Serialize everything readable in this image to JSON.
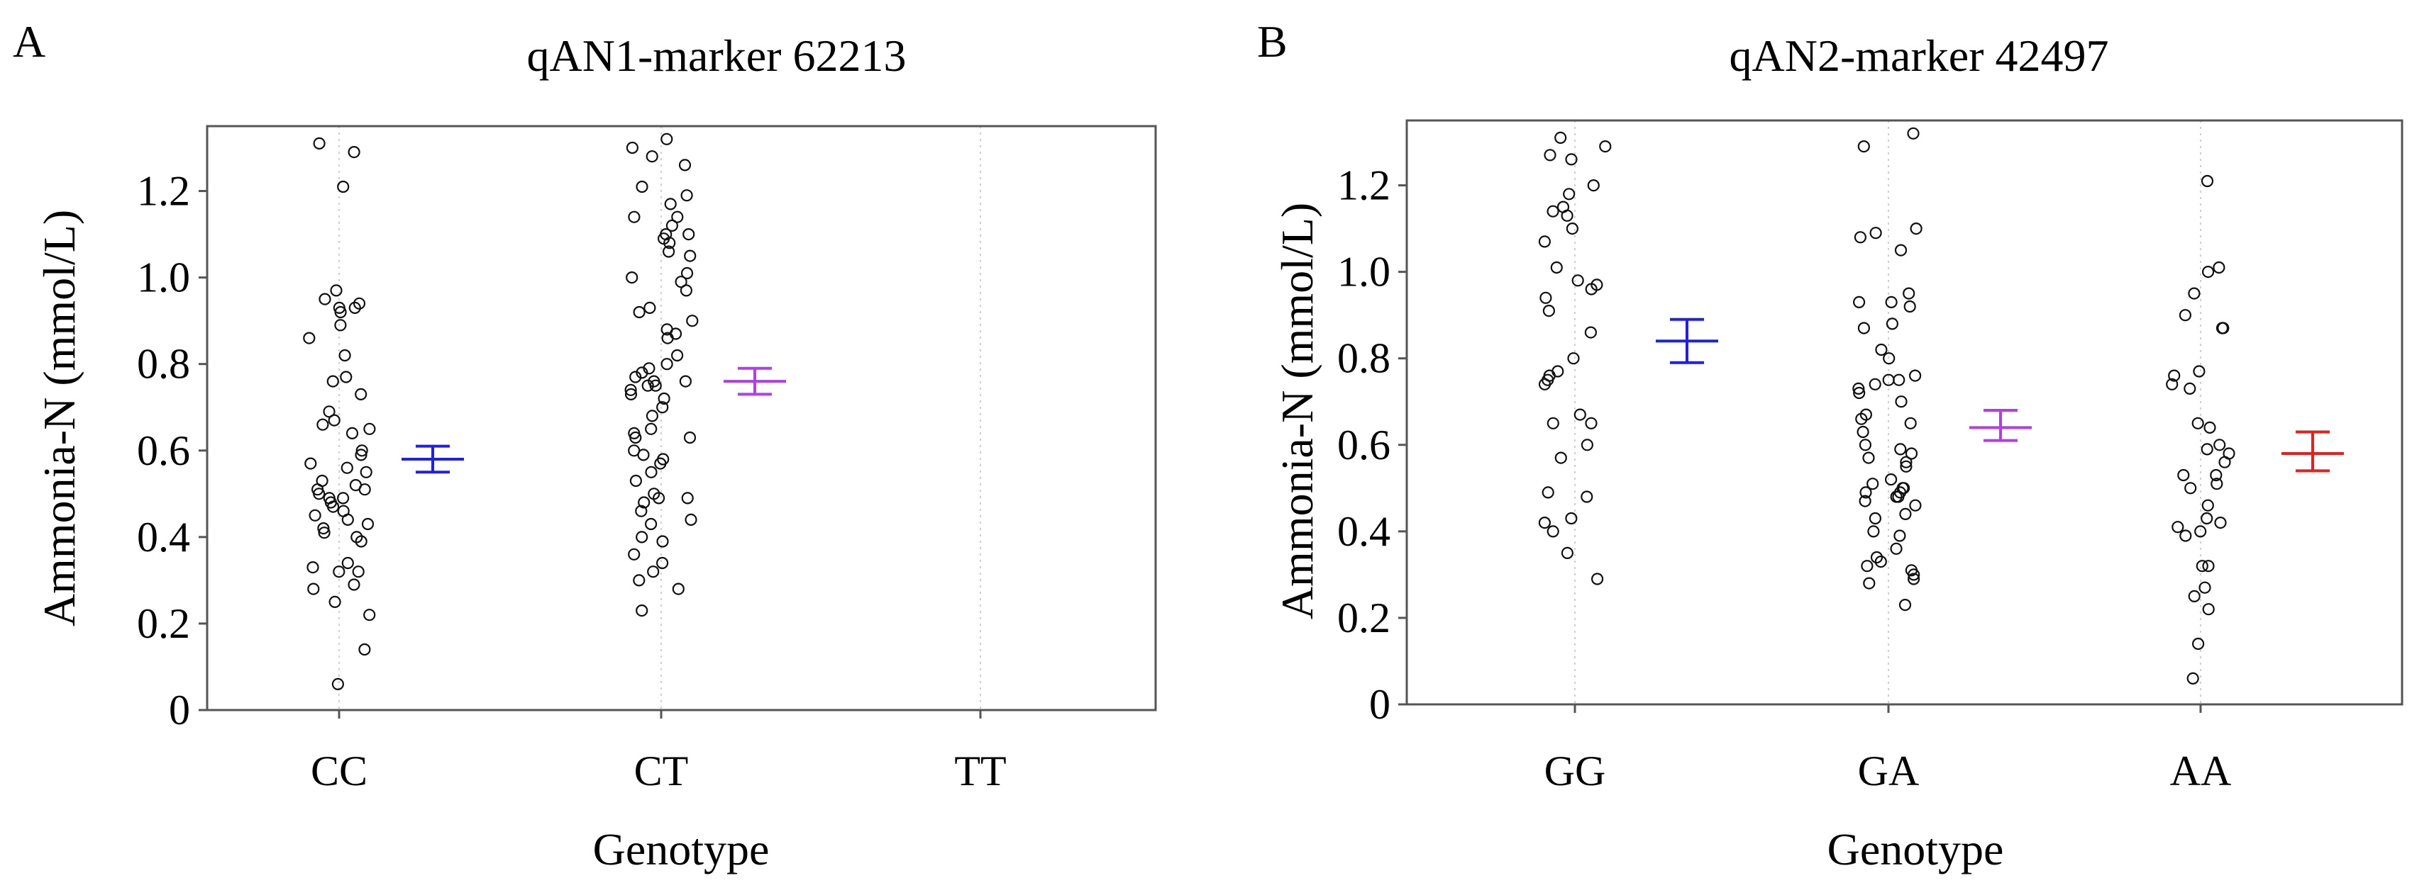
{
  "chart_data": [
    {
      "type": "scatter",
      "panel_label": "A",
      "title": "qAN1-marker 62213",
      "xlabel": "Genotype",
      "ylabel": "Ammonia-N (mmol/L)",
      "ylim": [
        0,
        1.35
      ],
      "yticks": [
        "0",
        "0.2",
        "0.4",
        "0.6",
        "0.8",
        "1.0",
        "1.2"
      ],
      "categories": [
        "CC",
        "CT",
        "TT"
      ],
      "grid": "vertical dotted lines at categories",
      "series": [
        {
          "name": "CC",
          "values": [
            1.31,
            1.29,
            1.21,
            0.97,
            0.95,
            0.94,
            0.93,
            0.93,
            0.92,
            0.89,
            0.86,
            0.82,
            0.77,
            0.76,
            0.73,
            0.69,
            0.67,
            0.66,
            0.65,
            0.64,
            0.6,
            0.59,
            0.57,
            0.56,
            0.55,
            0.53,
            0.52,
            0.51,
            0.51,
            0.5,
            0.49,
            0.49,
            0.48,
            0.47,
            0.46,
            0.45,
            0.44,
            0.43,
            0.42,
            0.41,
            0.4,
            0.39,
            0.34,
            0.33,
            0.32,
            0.32,
            0.29,
            0.28,
            0.25,
            0.22,
            0.14,
            0.06
          ],
          "mean": 0.58,
          "err_low": 0.55,
          "err_high": 0.61,
          "color": "#1f1fe6"
        },
        {
          "name": "CT",
          "values": [
            1.32,
            1.3,
            1.28,
            1.26,
            1.21,
            1.19,
            1.17,
            1.14,
            1.14,
            1.12,
            1.1,
            1.1,
            1.09,
            1.08,
            1.06,
            1.05,
            1.01,
            1.0,
            0.99,
            0.97,
            0.93,
            0.92,
            0.9,
            0.88,
            0.87,
            0.86,
            0.82,
            0.8,
            0.79,
            0.78,
            0.77,
            0.76,
            0.76,
            0.75,
            0.75,
            0.74,
            0.73,
            0.72,
            0.7,
            0.68,
            0.65,
            0.64,
            0.63,
            0.63,
            0.6,
            0.59,
            0.58,
            0.57,
            0.55,
            0.53,
            0.5,
            0.49,
            0.49,
            0.48,
            0.46,
            0.44,
            0.43,
            0.4,
            0.39,
            0.36,
            0.34,
            0.32,
            0.3,
            0.28,
            0.23
          ],
          "mean": 0.76,
          "err_low": 0.73,
          "err_high": 0.79,
          "color": "#b23ee6"
        },
        {
          "name": "TT",
          "values": []
        }
      ]
    },
    {
      "type": "scatter",
      "panel_label": "B",
      "title": "qAN2-marker 42497",
      "xlabel": "Genotype",
      "ylabel": "Ammonia-N (mmol/L)",
      "ylim": [
        0,
        1.35
      ],
      "yticks": [
        "0",
        "0.2",
        "0.4",
        "0.6",
        "0.8",
        "1.0",
        "1.2"
      ],
      "categories": [
        "GG",
        "GA",
        "AA"
      ],
      "grid": "vertical dotted lines at categories",
      "series": [
        {
          "name": "GG",
          "values": [
            1.31,
            1.29,
            1.27,
            1.26,
            1.2,
            1.18,
            1.15,
            1.14,
            1.13,
            1.1,
            1.07,
            1.01,
            0.98,
            0.97,
            0.96,
            0.94,
            0.91,
            0.86,
            0.8,
            0.77,
            0.76,
            0.75,
            0.74,
            0.67,
            0.65,
            0.65,
            0.6,
            0.57,
            0.49,
            0.48,
            0.43,
            0.42,
            0.4,
            0.35,
            0.29
          ],
          "mean": 0.84,
          "err_low": 0.79,
          "err_high": 0.89,
          "color": "#1f1fe6"
        },
        {
          "name": "GA",
          "values": [
            1.32,
            1.29,
            1.1,
            1.09,
            1.08,
            1.05,
            0.95,
            0.93,
            0.93,
            0.92,
            0.88,
            0.87,
            0.82,
            0.8,
            0.76,
            0.75,
            0.75,
            0.74,
            0.73,
            0.72,
            0.7,
            0.67,
            0.66,
            0.65,
            0.63,
            0.6,
            0.59,
            0.58,
            0.57,
            0.56,
            0.55,
            0.52,
            0.51,
            0.5,
            0.5,
            0.49,
            0.49,
            0.48,
            0.48,
            0.47,
            0.46,
            0.44,
            0.43,
            0.4,
            0.39,
            0.36,
            0.34,
            0.33,
            0.32,
            0.31,
            0.3,
            0.29,
            0.28,
            0.23
          ],
          "mean": 0.64,
          "err_low": 0.61,
          "err_high": 0.68,
          "color": "#b23ee6"
        },
        {
          "name": "AA",
          "values": [
            1.21,
            1.01,
            1.0,
            0.95,
            0.9,
            0.87,
            0.87,
            0.77,
            0.76,
            0.74,
            0.73,
            0.65,
            0.64,
            0.6,
            0.59,
            0.58,
            0.56,
            0.53,
            0.53,
            0.51,
            0.5,
            0.46,
            0.43,
            0.42,
            0.41,
            0.4,
            0.39,
            0.32,
            0.32,
            0.27,
            0.25,
            0.22,
            0.14,
            0.06
          ],
          "mean": 0.58,
          "err_low": 0.54,
          "err_high": 0.63,
          "color": "#e61f1f"
        }
      ]
    }
  ]
}
